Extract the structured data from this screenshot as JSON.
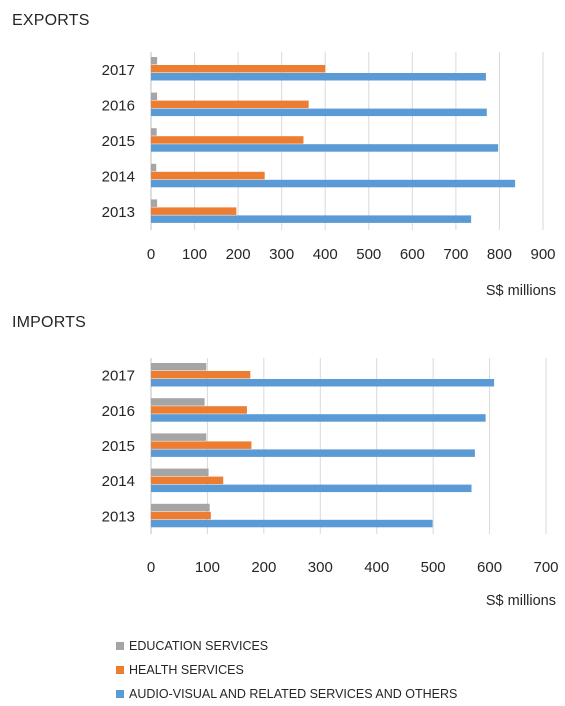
{
  "colors": {
    "education": "#a5a5a5",
    "health": "#ed7d31",
    "audiovisual": "#5b9bd5",
    "grid": "#d9d9d9",
    "text": "#262626"
  },
  "legend": [
    {
      "key": "education",
      "label": "EDUCATION SERVICES"
    },
    {
      "key": "health",
      "label": "HEALTH SERVICES"
    },
    {
      "key": "audiovisual",
      "label": "AUDIO-VISUAL AND RELATED SERVICES AND OTHERS"
    }
  ],
  "chart_data": [
    {
      "type": "bar",
      "orientation": "horizontal",
      "title": "EXPORTS",
      "xlabel": "S$ millions",
      "categories": [
        "2017",
        "2016",
        "2015",
        "2014",
        "2013"
      ],
      "xlim": [
        0,
        900
      ],
      "xticks": [
        0,
        100,
        200,
        300,
        400,
        500,
        600,
        700,
        800,
        900
      ],
      "grid": true,
      "series": [
        {
          "name": "EDUCATION SERVICES",
          "key": "education",
          "values": [
            14,
            14,
            13,
            12,
            14
          ]
        },
        {
          "name": "HEALTH SERVICES",
          "key": "health",
          "values": [
            400,
            362,
            350,
            261,
            196
          ]
        },
        {
          "name": "AUDIO-VISUAL AND RELATED SERVICES AND OTHERS",
          "key": "audiovisual",
          "values": [
            769,
            771,
            797,
            836,
            735
          ]
        }
      ]
    },
    {
      "type": "bar",
      "orientation": "horizontal",
      "title": "IMPORTS",
      "xlabel": "S$ millions",
      "categories": [
        "2017",
        "2016",
        "2015",
        "2014",
        "2013"
      ],
      "xlim": [
        0,
        700
      ],
      "xticks": [
        0,
        100,
        200,
        300,
        400,
        500,
        600,
        700
      ],
      "grid": true,
      "series": [
        {
          "name": "EDUCATION SERVICES",
          "key": "education",
          "values": [
            98,
            95,
            98,
            102,
            104
          ]
        },
        {
          "name": "HEALTH SERVICES",
          "key": "health",
          "values": [
            176,
            170,
            178,
            128,
            106
          ]
        },
        {
          "name": "AUDIO-VISUAL AND RELATED SERVICES AND OTHERS",
          "key": "audiovisual",
          "values": [
            608,
            593,
            574,
            568,
            499
          ]
        }
      ]
    }
  ]
}
